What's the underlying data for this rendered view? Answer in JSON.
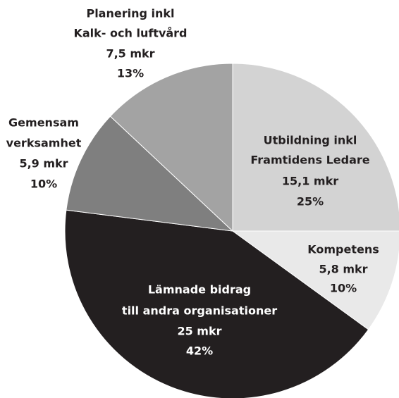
{
  "chart_data": {
    "type": "pie",
    "categories": [
      [
        "Utbildning inkl",
        "Framtidens Ledare"
      ],
      [
        "Kompetens"
      ],
      [
        "Lämnade bidrag",
        "till andra organisationer"
      ],
      [
        "Gemensam",
        "verksamhet"
      ],
      [
        "Planering inkl",
        "Kalk- och luftvård"
      ]
    ],
    "values": [
      25,
      10,
      42,
      10,
      13
    ],
    "value_labels": [
      "25%",
      "10%",
      "42%",
      "10%",
      "13%"
    ],
    "amounts": [
      15.1,
      5.8,
      25,
      5.9,
      7.5
    ],
    "amount_labels": [
      "15,1 mkr",
      "5,8 mkr",
      "25 mkr",
      "5,9 mkr",
      "7,5 mkr"
    ],
    "colors": [
      "#d3d3d3",
      "#e9e9e9",
      "#231f20",
      "#7f7f7f",
      "#a3a3a3"
    ],
    "start_angle": 0,
    "direction": "clockwise"
  }
}
